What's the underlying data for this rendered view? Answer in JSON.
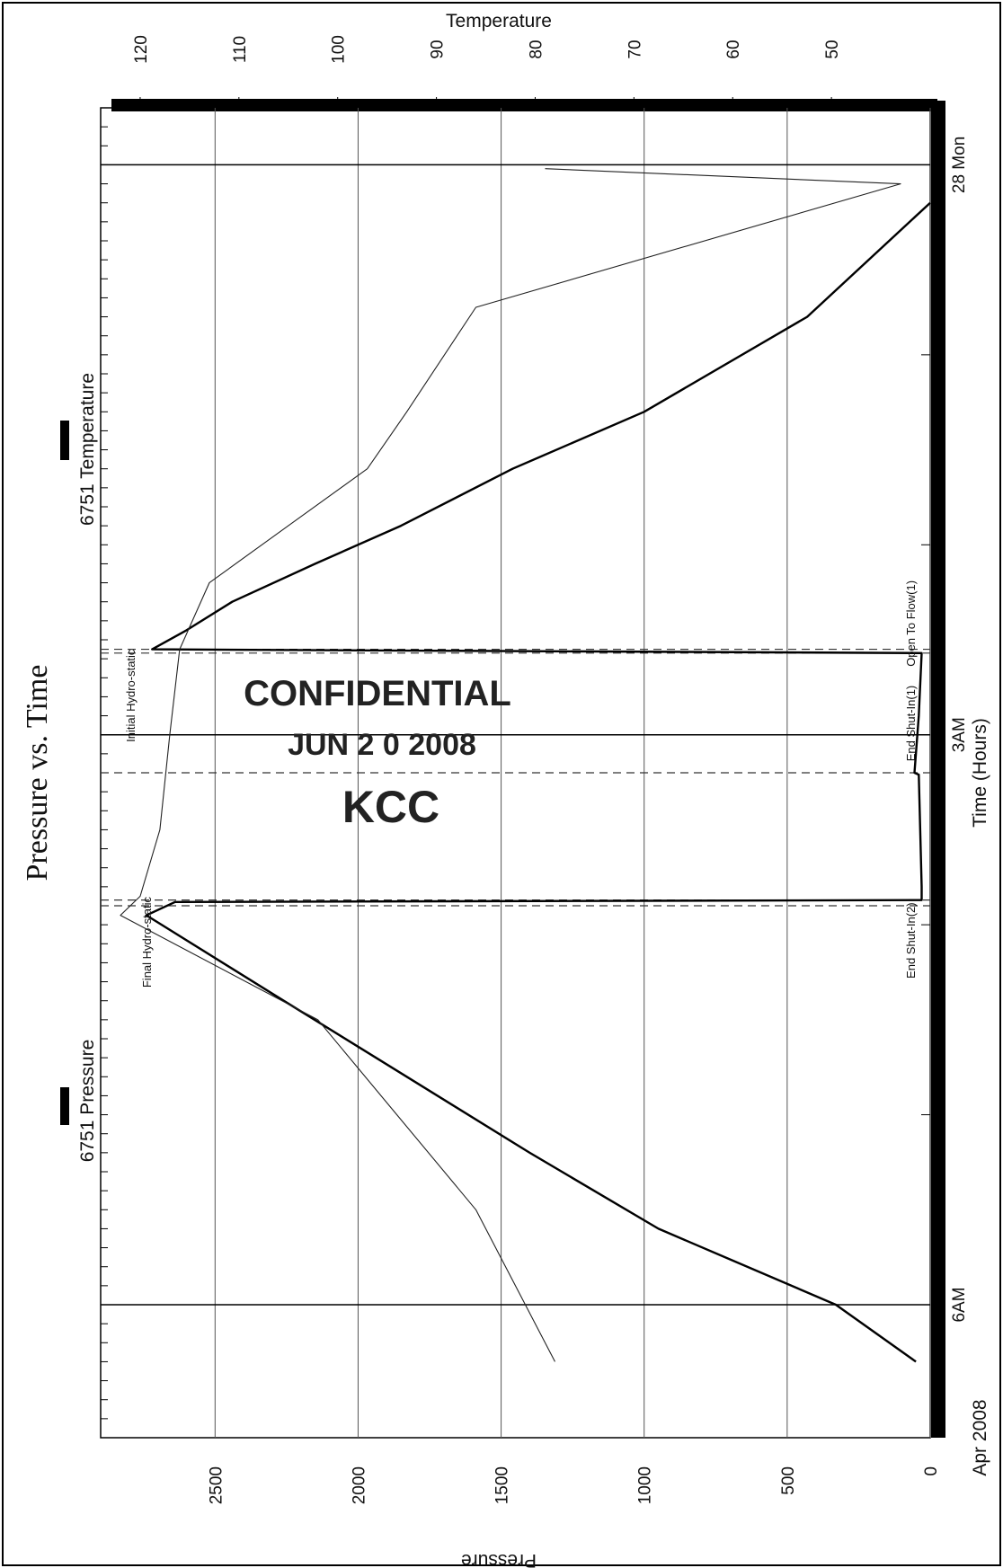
{
  "chart_data": {
    "type": "line",
    "title": "Pressure vs. Time",
    "xlabel": "Time (Hours)",
    "x_tick_labels": [
      {
        "t": 0,
        "label": "28 Mon"
      },
      {
        "t": 3,
        "label": "3AM"
      },
      {
        "t": 6,
        "label": "6AM"
      }
    ],
    "x_axis_date": "Apr 2008",
    "xlim": [
      -0.3,
      6.7
    ],
    "ylabel_left": "Pressure",
    "ylim_left": [
      0,
      2900
    ],
    "yticks_left": [
      0,
      500,
      1000,
      1500,
      2000,
      2500
    ],
    "ylabel_right": "Temperature",
    "ylim_right": [
      40,
      124
    ],
    "yticks_right": [
      50,
      60,
      70,
      80,
      90,
      100,
      110,
      120
    ],
    "series": [
      {
        "name": "6751 Pressure",
        "axis": "left",
        "points": [
          [
            0.2,
            0
          ],
          [
            0.8,
            430
          ],
          [
            1.3,
            1000
          ],
          [
            1.6,
            1460
          ],
          [
            1.9,
            1850
          ],
          [
            2.1,
            2150
          ],
          [
            2.3,
            2440
          ],
          [
            2.45,
            2600
          ],
          [
            2.55,
            2720
          ],
          [
            2.57,
            30
          ],
          [
            2.9,
            40
          ],
          [
            3.2,
            55
          ],
          [
            3.21,
            40
          ],
          [
            3.8,
            30
          ],
          [
            3.87,
            30
          ],
          [
            3.88,
            2640
          ],
          [
            3.95,
            2740
          ],
          [
            4.4,
            2260
          ],
          [
            4.8,
            1830
          ],
          [
            5.2,
            1400
          ],
          [
            5.6,
            950
          ],
          [
            6.0,
            330
          ],
          [
            6.3,
            50
          ]
        ]
      },
      {
        "name": "6751 Temperature",
        "axis": "right",
        "points": [
          [
            0.02,
            79
          ],
          [
            0.1,
            43
          ],
          [
            0.75,
            86
          ],
          [
            1.3,
            93
          ],
          [
            1.6,
            97
          ],
          [
            1.9,
            105
          ],
          [
            2.2,
            113
          ],
          [
            2.55,
            116
          ],
          [
            3.0,
            117
          ],
          [
            3.5,
            118
          ],
          [
            3.85,
            120
          ],
          [
            3.95,
            122
          ],
          [
            4.5,
            102
          ],
          [
            5.0,
            94
          ],
          [
            5.5,
            86
          ],
          [
            6.3,
            78
          ]
        ]
      }
    ],
    "annotations": [
      {
        "t": 2.55,
        "label": "Initial Hydro-static"
      },
      {
        "t": 2.57,
        "label": "Open To Flow(1)"
      },
      {
        "t": 3.2,
        "label": "End Shut-In(1)"
      },
      {
        "t": 3.87,
        "label": "End Shut-In(2)"
      },
      {
        "t": 3.9,
        "label": "Final Hydro-static"
      }
    ],
    "stamp": [
      "CONFIDENTIAL",
      "JUN 2 0 2008",
      "KCC"
    ]
  }
}
